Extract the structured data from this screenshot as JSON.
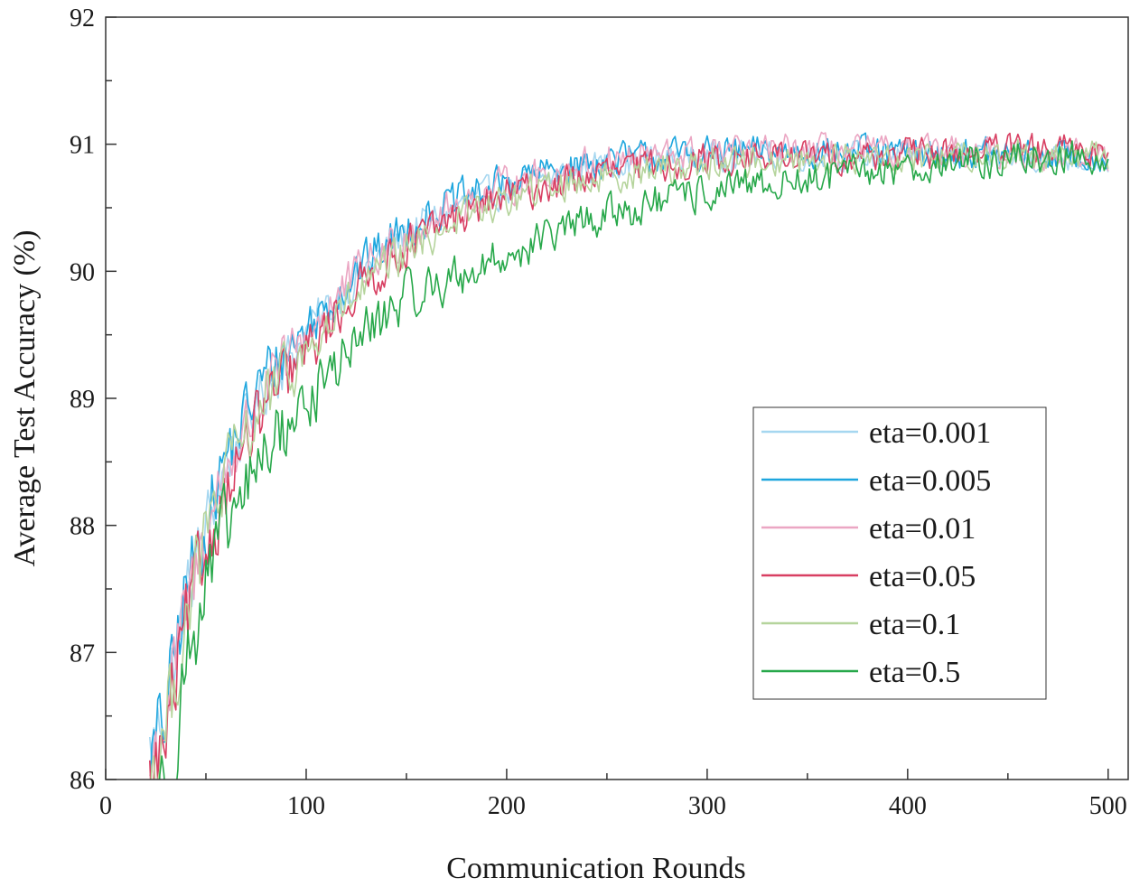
{
  "chart_data": {
    "type": "line",
    "title": "",
    "xlabel": "Communication Rounds",
    "ylabel": "Average Test Accuracy (%)",
    "xlim": [
      0,
      510
    ],
    "ylim": [
      86,
      92
    ],
    "xticks": [
      0,
      100,
      200,
      300,
      400,
      500
    ],
    "yticks": [
      86,
      87,
      88,
      89,
      90,
      91,
      92
    ],
    "xtick_labels": [
      "0",
      "100",
      "200",
      "300",
      "400",
      "500"
    ],
    "ytick_labels": [
      "86",
      "87",
      "88",
      "89",
      "90",
      "91",
      "92"
    ],
    "grid": false,
    "legend_position": "center-right",
    "x_start": 22,
    "x_end": 500,
    "series": [
      {
        "name": "eta=0.001",
        "color": "#a6d7f0",
        "noise": 0.07,
        "keypoints": [
          [
            22,
            86.2
          ],
          [
            30,
            86.6
          ],
          [
            40,
            87.4
          ],
          [
            50,
            88.0
          ],
          [
            60,
            88.5
          ],
          [
            80,
            89.1
          ],
          [
            100,
            89.5
          ],
          [
            125,
            89.95
          ],
          [
            150,
            90.3
          ],
          [
            175,
            90.5
          ],
          [
            200,
            90.65
          ],
          [
            225,
            90.75
          ],
          [
            250,
            90.85
          ],
          [
            300,
            90.9
          ],
          [
            350,
            90.92
          ],
          [
            400,
            90.9
          ],
          [
            450,
            90.9
          ],
          [
            500,
            90.88
          ]
        ]
      },
      {
        "name": "eta=0.005",
        "color": "#1ea6de",
        "noise": 0.08,
        "keypoints": [
          [
            22,
            86.1
          ],
          [
            30,
            86.5
          ],
          [
            40,
            87.5
          ],
          [
            50,
            88.0
          ],
          [
            60,
            88.55
          ],
          [
            80,
            89.2
          ],
          [
            100,
            89.55
          ],
          [
            125,
            90.0
          ],
          [
            150,
            90.35
          ],
          [
            175,
            90.55
          ],
          [
            200,
            90.7
          ],
          [
            225,
            90.8
          ],
          [
            250,
            90.88
          ],
          [
            300,
            90.93
          ],
          [
            350,
            90.95
          ],
          [
            400,
            90.92
          ],
          [
            450,
            90.92
          ],
          [
            500,
            90.9
          ]
        ]
      },
      {
        "name": "eta=0.01",
        "color": "#eba6c3",
        "noise": 0.08,
        "keypoints": [
          [
            22,
            86.05
          ],
          [
            30,
            86.5
          ],
          [
            40,
            87.3
          ],
          [
            50,
            87.95
          ],
          [
            60,
            88.45
          ],
          [
            80,
            89.05
          ],
          [
            100,
            89.5
          ],
          [
            125,
            89.95
          ],
          [
            150,
            90.3
          ],
          [
            175,
            90.5
          ],
          [
            200,
            90.68
          ],
          [
            225,
            90.78
          ],
          [
            250,
            90.88
          ],
          [
            300,
            90.93
          ],
          [
            350,
            90.95
          ],
          [
            400,
            90.93
          ],
          [
            450,
            90.93
          ],
          [
            500,
            90.9
          ]
        ]
      },
      {
        "name": "eta=0.05",
        "color": "#d83f62",
        "noise": 0.08,
        "keypoints": [
          [
            22,
            85.9
          ],
          [
            30,
            86.3
          ],
          [
            40,
            87.2
          ],
          [
            50,
            87.8
          ],
          [
            60,
            88.3
          ],
          [
            80,
            88.95
          ],
          [
            100,
            89.35
          ],
          [
            125,
            89.85
          ],
          [
            150,
            90.2
          ],
          [
            175,
            90.42
          ],
          [
            200,
            90.6
          ],
          [
            225,
            90.68
          ],
          [
            250,
            90.78
          ],
          [
            300,
            90.88
          ],
          [
            350,
            90.9
          ],
          [
            400,
            90.92
          ],
          [
            450,
            90.95
          ],
          [
            500,
            90.95
          ]
        ]
      },
      {
        "name": "eta=0.1",
        "color": "#b5d49c",
        "noise": 0.08,
        "keypoints": [
          [
            22,
            86.0
          ],
          [
            30,
            86.4
          ],
          [
            40,
            87.3
          ],
          [
            50,
            87.9
          ],
          [
            60,
            88.4
          ],
          [
            80,
            89.0
          ],
          [
            100,
            89.35
          ],
          [
            125,
            89.8
          ],
          [
            150,
            90.15
          ],
          [
            175,
            90.42
          ],
          [
            200,
            90.55
          ],
          [
            225,
            90.68
          ],
          [
            250,
            90.75
          ],
          [
            300,
            90.85
          ],
          [
            350,
            90.88
          ],
          [
            400,
            90.9
          ],
          [
            450,
            90.92
          ],
          [
            500,
            90.92
          ]
        ]
      },
      {
        "name": "eta=0.5",
        "color": "#27a84a",
        "noise": 0.09,
        "keypoints": [
          [
            22,
            85.6
          ],
          [
            30,
            85.9
          ],
          [
            40,
            86.9
          ],
          [
            50,
            87.5
          ],
          [
            60,
            87.95
          ],
          [
            80,
            88.6
          ],
          [
            100,
            88.95
          ],
          [
            125,
            89.45
          ],
          [
            150,
            89.8
          ],
          [
            175,
            89.95
          ],
          [
            200,
            90.12
          ],
          [
            225,
            90.3
          ],
          [
            250,
            90.45
          ],
          [
            300,
            90.62
          ],
          [
            350,
            90.72
          ],
          [
            400,
            90.82
          ],
          [
            450,
            90.88
          ],
          [
            500,
            90.9
          ]
        ]
      }
    ]
  }
}
